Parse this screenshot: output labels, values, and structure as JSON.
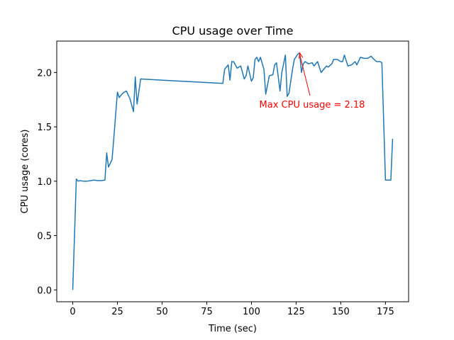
{
  "chart_data": {
    "type": "line",
    "title": "CPU usage over Time",
    "x_label": "Time (sec)",
    "y_label": "CPU usage (cores)",
    "annotation": "Max CPU usage = 2.18",
    "color": "#1f77b4",
    "x": [
      0,
      2,
      3,
      4,
      6,
      8,
      10,
      12,
      14,
      16,
      18,
      19,
      20,
      22,
      23,
      25,
      26,
      28,
      30,
      32,
      34,
      35,
      36,
      38,
      84,
      85,
      87,
      88,
      89,
      90,
      92,
      94,
      96,
      97,
      98,
      100,
      101,
      102,
      103,
      104,
      105,
      107,
      108,
      110,
      112,
      113,
      114,
      116,
      117,
      119,
      120,
      121,
      123,
      124,
      126,
      127,
      128,
      129,
      130,
      132,
      134,
      135,
      137,
      139,
      140,
      142,
      143,
      145,
      146,
      148,
      150,
      151,
      152,
      154,
      156,
      158,
      159,
      161,
      163,
      165,
      167,
      168,
      170,
      172,
      173,
      175,
      177,
      178,
      179
    ],
    "values": [
      0,
      1.02,
      1.0,
      1.005,
      1.0,
      1.0,
      1.005,
      1.01,
      1.005,
      1.005,
      1.01,
      1.26,
      1.13,
      1.2,
      1.4,
      1.82,
      1.77,
      1.81,
      1.83,
      1.76,
      1.64,
      1.96,
      1.71,
      1.94,
      1.9,
      2.03,
      2.07,
      1.93,
      2.1,
      2.1,
      2.04,
      2.06,
      1.94,
      1.97,
      2.06,
      1.92,
      1.95,
      2.12,
      2.14,
      2.1,
      2.14,
      2.03,
      1.8,
      1.97,
      1.98,
      2.07,
      2.09,
      1.83,
      2.0,
      2.16,
      1.78,
      1.81,
      2.03,
      2.12,
      2.17,
      2.18,
      2.0,
      2.08,
      2.1,
      2.08,
      2.09,
      2.06,
      2.1,
      2.0,
      2.02,
      2.06,
      2.05,
      2.08,
      2.12,
      2.12,
      2.1,
      2.1,
      2.16,
      2.06,
      2.07,
      2.1,
      2.07,
      2.14,
      2.13,
      2.13,
      2.15,
      2.13,
      2.1,
      2.1,
      2.09,
      1.01,
      1.01,
      1.01,
      1.39
    ],
    "xlim": [
      -8.95,
      187.95
    ],
    "ylim": [
      -0.109,
      2.289
    ],
    "xticks": [
      0,
      25,
      50,
      75,
      100,
      125,
      150,
      175
    ],
    "yticks": [
      {
        "value": 0,
        "label": "0.0"
      },
      {
        "value": 0.5,
        "label": "0.5"
      },
      {
        "value": 1,
        "label": "1.0"
      },
      {
        "value": 1.5,
        "label": "1.5"
      },
      {
        "value": 2,
        "label": "2.0"
      }
    ],
    "grid": false,
    "annotation_color": "#ff0000"
  }
}
